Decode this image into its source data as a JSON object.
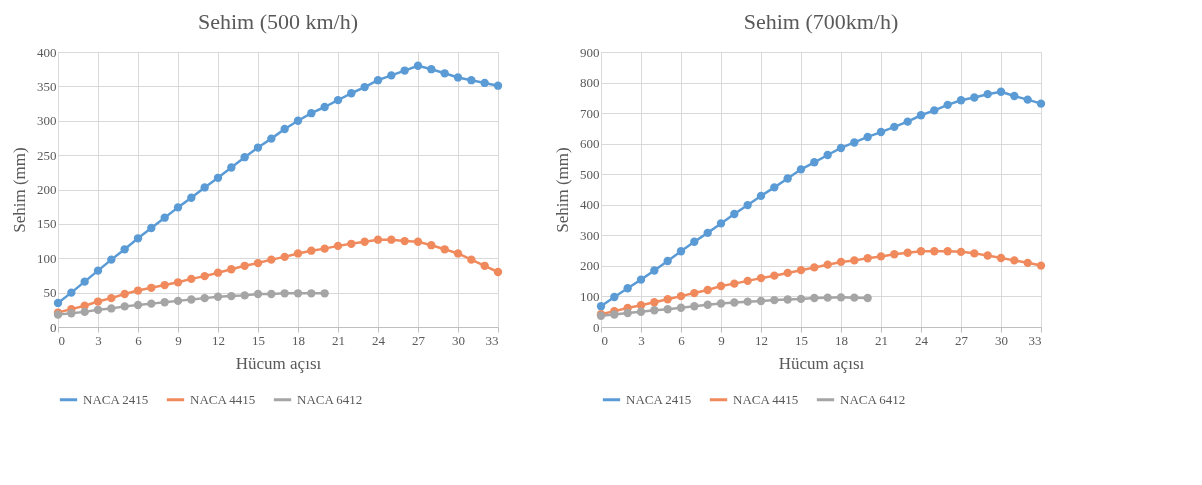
{
  "chart_data": [
    {
      "type": "line",
      "title": "Sehim (500 km/h)",
      "xlabel": "Hücum açısı",
      "ylabel": "Sehim (mm)",
      "x": [
        0,
        1,
        2,
        3,
        4,
        5,
        6,
        7,
        8,
        9,
        10,
        11,
        12,
        13,
        14,
        15,
        16,
        17,
        18,
        19,
        20,
        21,
        22,
        23,
        24,
        25,
        26,
        27,
        28,
        29,
        30,
        31,
        32,
        33
      ],
      "xlim": [
        0,
        33
      ],
      "xticks": [
        0,
        3,
        6,
        9,
        12,
        15,
        18,
        21,
        24,
        27,
        30,
        33
      ],
      "ylim": [
        0,
        400
      ],
      "yticks": [
        0,
        50,
        100,
        150,
        200,
        250,
        300,
        350,
        400
      ],
      "grid": true,
      "legend": "bottom",
      "marker": "circle",
      "series": [
        {
          "name": "NACA 2415",
          "color": "#5b9bd5",
          "values": [
            35,
            50,
            66,
            82,
            98,
            113,
            129,
            144,
            159,
            174,
            188,
            203,
            217,
            232,
            247,
            261,
            274,
            288,
            300,
            311,
            320,
            330,
            340,
            349,
            359,
            366,
            373,
            380,
            375,
            369,
            363,
            359,
            355,
            351
          ]
        },
        {
          "name": "NACA 4415",
          "color": "#f08a5d",
          "values": [
            21,
            26,
            31,
            37,
            42,
            48,
            53,
            57,
            61,
            65,
            70,
            74,
            79,
            84,
            89,
            93,
            98,
            102,
            107,
            111,
            114,
            118,
            121,
            124,
            127,
            127,
            125,
            124,
            119,
            113,
            107,
            98,
            89,
            80
          ]
        },
        {
          "name": "NACA 6412",
          "color": "#a5a5a5",
          "x": [
            0,
            1,
            2,
            3,
            4,
            5,
            6,
            7,
            8,
            9,
            10,
            11,
            12,
            13,
            14,
            15,
            16,
            17,
            18,
            19,
            20
          ],
          "values": [
            18,
            20,
            22,
            25,
            27,
            30,
            32,
            34,
            36,
            38,
            40,
            42,
            44,
            45,
            46,
            48,
            48,
            49,
            49,
            49,
            49
          ]
        }
      ]
    },
    {
      "type": "line",
      "title": "Sehim (700km/h)",
      "xlabel": "Hücum açısı",
      "ylabel": "Sehim (mm)",
      "x": [
        0,
        1,
        2,
        3,
        4,
        5,
        6,
        7,
        8,
        9,
        10,
        11,
        12,
        13,
        14,
        15,
        16,
        17,
        18,
        19,
        20,
        21,
        22,
        23,
        24,
        25,
        26,
        27,
        28,
        29,
        30,
        31,
        32,
        33
      ],
      "xlim": [
        0,
        33
      ],
      "xticks": [
        0,
        3,
        6,
        9,
        12,
        15,
        18,
        21,
        24,
        27,
        30,
        33
      ],
      "ylim": [
        0,
        900
      ],
      "yticks": [
        0,
        100,
        200,
        300,
        400,
        500,
        600,
        700,
        800,
        900
      ],
      "grid": true,
      "legend": "bottom",
      "marker": "circle",
      "series": [
        {
          "name": "NACA 2415",
          "color": "#5b9bd5",
          "values": [
            68,
            98,
            127,
            155,
            185,
            216,
            248,
            279,
            308,
            339,
            370,
            399,
            429,
            457,
            486,
            516,
            539,
            563,
            586,
            604,
            622,
            638,
            655,
            672,
            693,
            709,
            727,
            742,
            751,
            762,
            770,
            756,
            744,
            731
          ]
        },
        {
          "name": "NACA 4415",
          "color": "#f08a5d",
          "values": [
            42,
            52,
            62,
            71,
            81,
            91,
            101,
            111,
            121,
            134,
            142,
            151,
            160,
            168,
            177,
            186,
            195,
            204,
            213,
            218,
            225,
            231,
            238,
            243,
            248,
            248,
            248,
            246,
            241,
            234,
            226,
            218,
            210,
            201
          ]
        },
        {
          "name": "NACA 6412",
          "color": "#a5a5a5",
          "x": [
            0,
            1,
            2,
            3,
            4,
            5,
            6,
            7,
            8,
            9,
            10,
            11,
            12,
            13,
            14,
            15,
            16,
            17,
            18,
            19,
            20
          ],
          "values": [
            37,
            41,
            46,
            50,
            55,
            58,
            63,
            68,
            73,
            77,
            80,
            83,
            85,
            88,
            90,
            92,
            95,
            96,
            97,
            96,
            95
          ]
        }
      ]
    }
  ]
}
